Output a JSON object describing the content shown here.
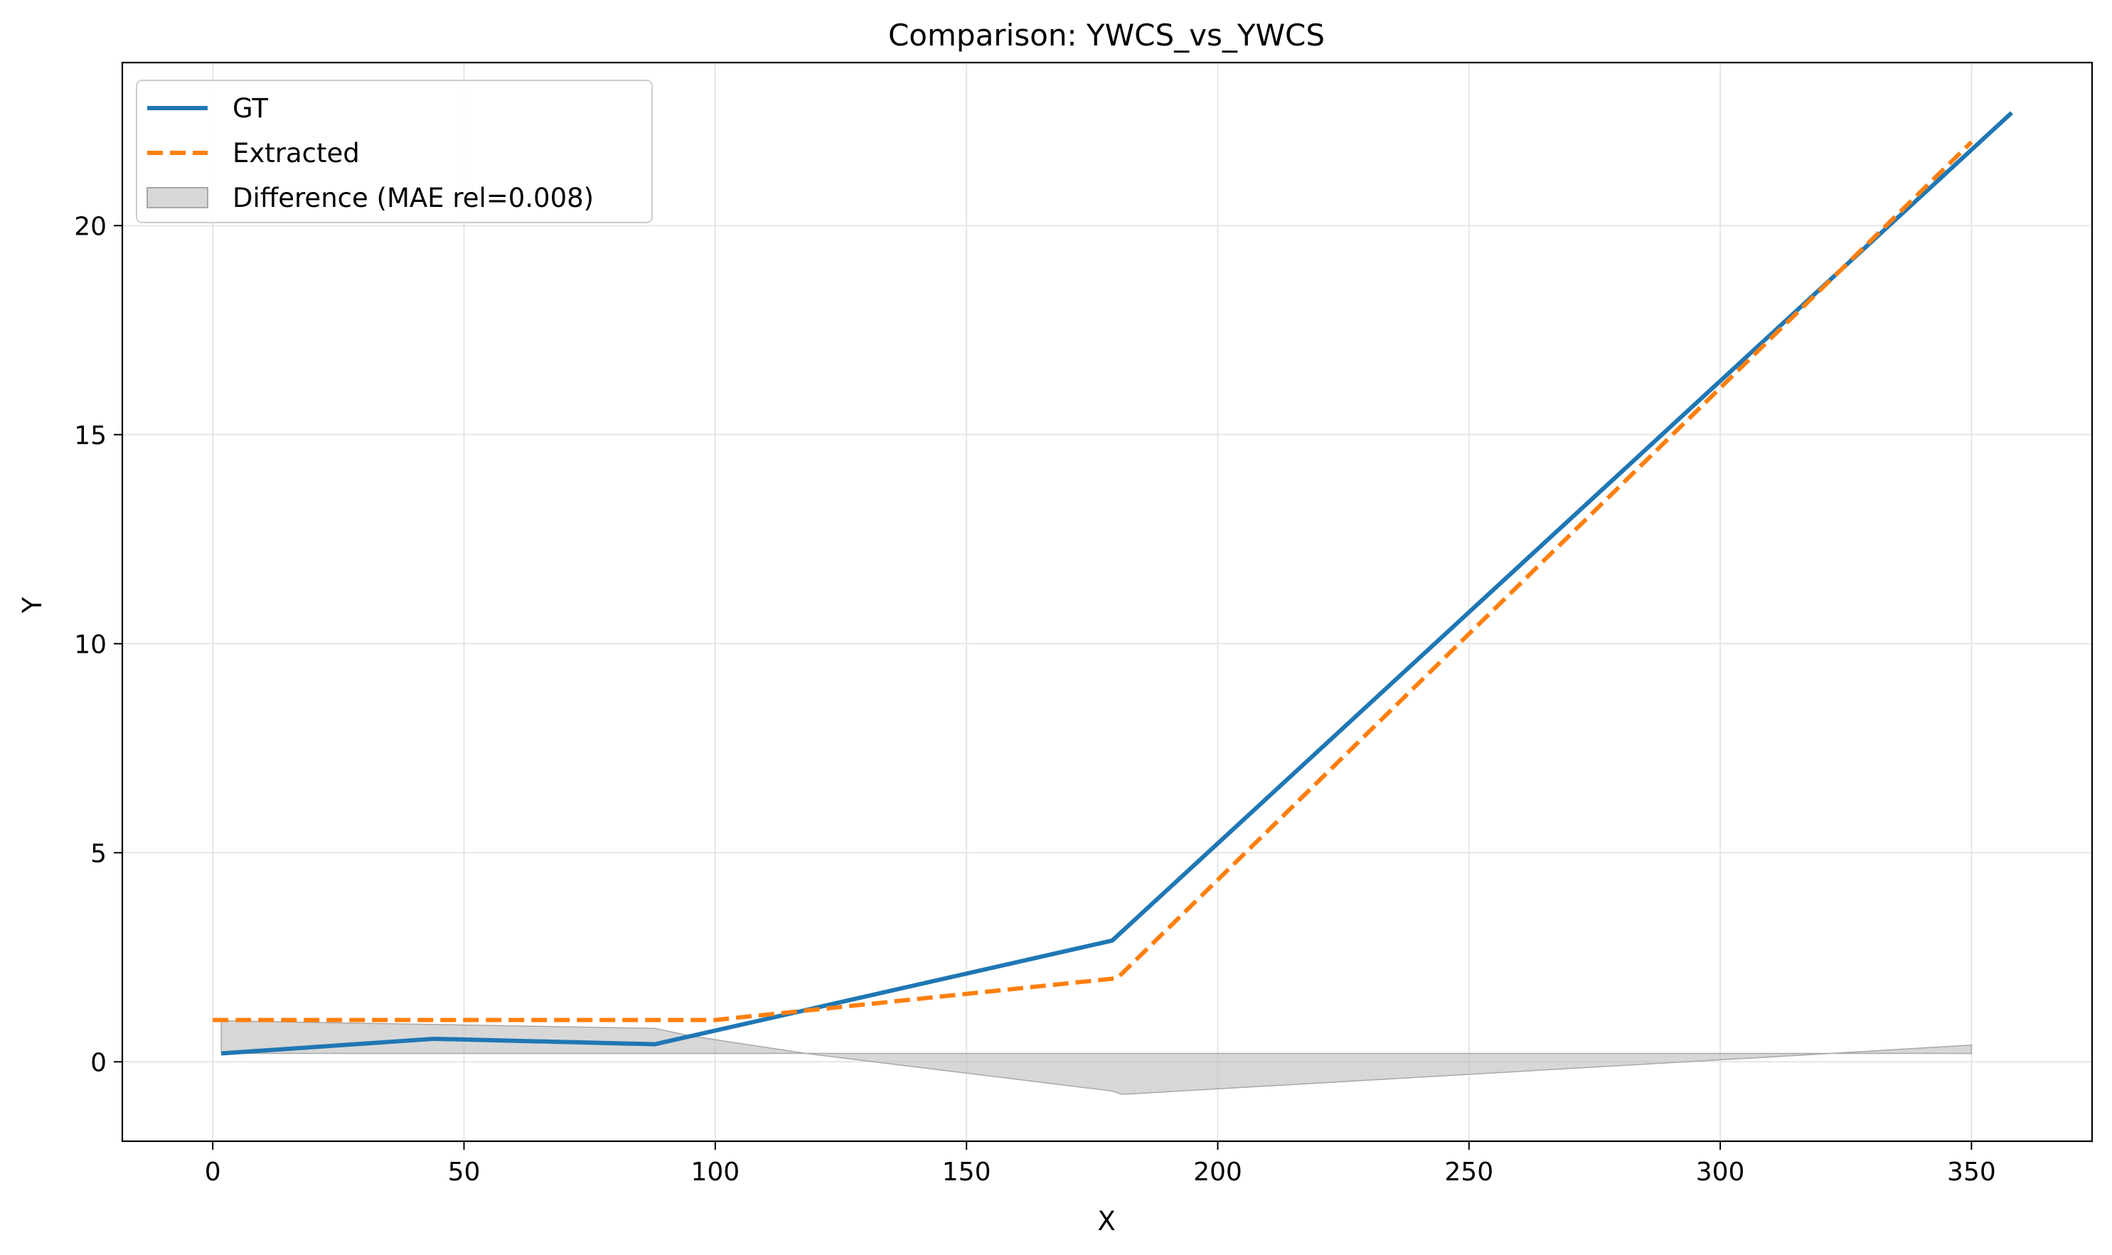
{
  "chart_data": {
    "type": "line",
    "title": "Comparison: YWCS_vs_YWCS",
    "xlabel": "X",
    "ylabel": "Y",
    "xlim": [
      -18,
      374
    ],
    "ylim": [
      -1.9,
      23.9
    ],
    "xticks": [
      0,
      50,
      100,
      150,
      200,
      250,
      300,
      350
    ],
    "yticks": [
      0,
      5,
      10,
      15,
      20
    ],
    "grid": true,
    "legend_position": "top-left",
    "series": [
      {
        "name": "GT",
        "style": "solid",
        "color": "#1f77b4",
        "points": [
          [
            1.7,
            0.2
          ],
          [
            44,
            0.55
          ],
          [
            88,
            0.42
          ],
          [
            179,
            2.9
          ],
          [
            358,
            22.7
          ]
        ]
      },
      {
        "name": "Extracted",
        "style": "dashed",
        "color": "#ff7f0e",
        "points": [
          [
            0,
            1.0
          ],
          [
            100,
            1.0
          ],
          [
            180,
            2.0
          ],
          [
            350,
            22.0
          ]
        ]
      }
    ],
    "difference_band": {
      "name": "Difference (MAE rel=0.008)",
      "color": "#bdbdbd",
      "baseline": 0.2,
      "points": [
        [
          1.7,
          0.98
        ],
        [
          88,
          0.8
        ],
        [
          95,
          0.62
        ],
        [
          118,
          0.2
        ],
        [
          179,
          -0.7
        ],
        [
          181,
          -0.78
        ],
        [
          322,
          0.2
        ],
        [
          350,
          0.4
        ]
      ]
    }
  }
}
